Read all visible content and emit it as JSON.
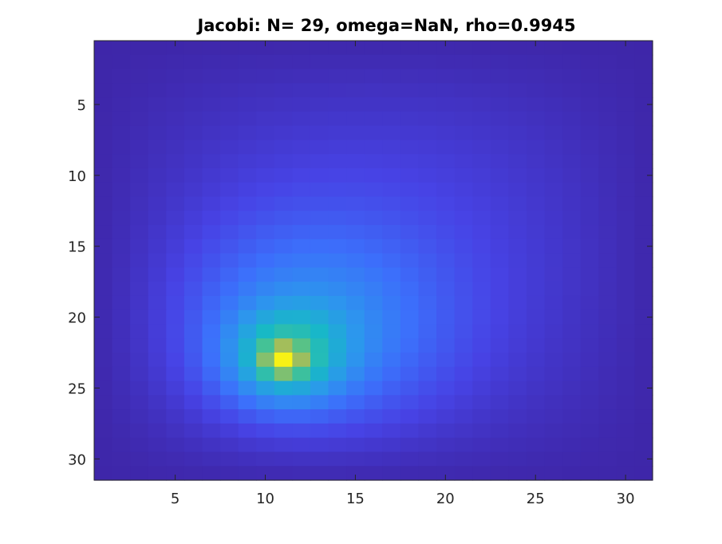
{
  "chart_data": {
    "type": "heatmap",
    "title": "Jacobi: N= 29, omega=NaN, rho=0.9945",
    "xlabel": "",
    "ylabel": "",
    "grid_size": [
      31,
      31
    ],
    "x_range": [
      0.5,
      31.5
    ],
    "y_range": [
      0.5,
      31.5
    ],
    "y_reversed": true,
    "x_ticks": [
      5,
      10,
      15,
      20,
      25,
      30
    ],
    "x_tick_labels": [
      "5",
      "10",
      "15",
      "20",
      "25",
      "30"
    ],
    "y_ticks": [
      5,
      10,
      15,
      20,
      25,
      30
    ],
    "y_tick_labels": [
      "5",
      "10",
      "15",
      "20",
      "25",
      "30"
    ],
    "colormap": "parula",
    "peak": {
      "col": 11,
      "row": 23,
      "value": 1.0
    },
    "grid": false,
    "legend": "none"
  },
  "colors": {
    "background": "#ffffff",
    "axis": "#262626",
    "colormap_stops": [
      "#3e26a8",
      "#4743e5",
      "#3c6ffb",
      "#2c97ed",
      "#17b9c6",
      "#4ac38f",
      "#a5be5a",
      "#f1b93a",
      "#f9fb0e"
    ]
  }
}
